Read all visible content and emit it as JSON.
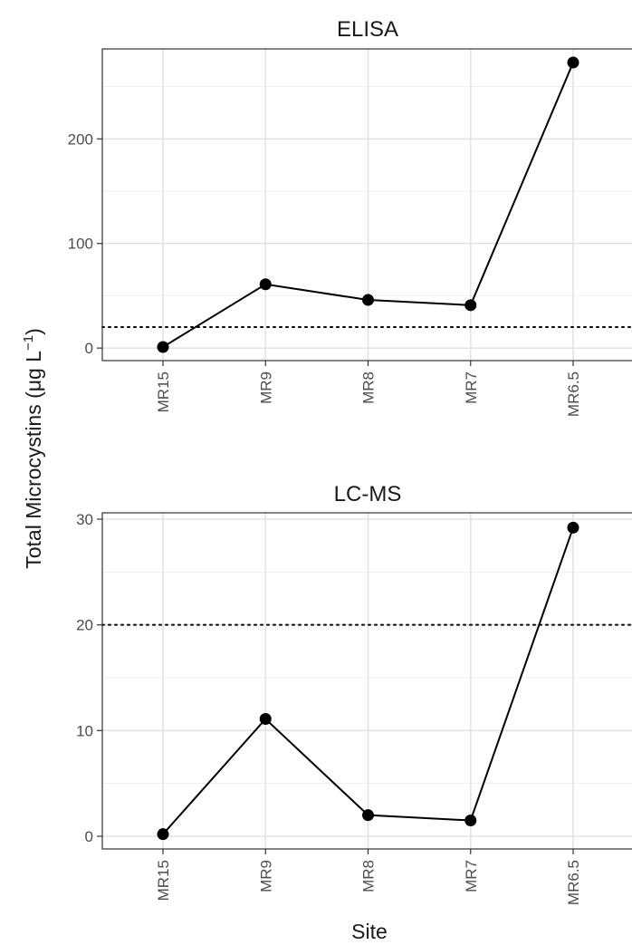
{
  "figure": {
    "ylabel_main": "Total Microcystins (μg L",
    "ylabel_sup": "−1",
    "ylabel_close": ")",
    "xlabel": "Site"
  },
  "chart_data": [
    {
      "type": "line",
      "title": "ELISA",
      "categories": [
        "MR15",
        "MR9",
        "MR8",
        "MR7",
        "MR6.5"
      ],
      "values": [
        1,
        61,
        46,
        41,
        273
      ],
      "ylim": [
        -12,
        286
      ],
      "yticks": [
        0,
        100,
        200
      ],
      "ytick_labels": [
        "0",
        "100",
        "200"
      ],
      "reference_line": 20,
      "grid": true
    },
    {
      "type": "line",
      "title": "LC-MS",
      "categories": [
        "MR15",
        "MR9",
        "MR8",
        "MR7",
        "MR6.5"
      ],
      "values": [
        0.2,
        11.1,
        2.0,
        1.5,
        29.2
      ],
      "ylim": [
        -1.2,
        30.6
      ],
      "yticks": [
        0,
        10,
        20,
        30
      ],
      "ytick_labels": [
        "0",
        "10",
        "20",
        "30"
      ],
      "reference_line": 20,
      "grid": true
    }
  ]
}
